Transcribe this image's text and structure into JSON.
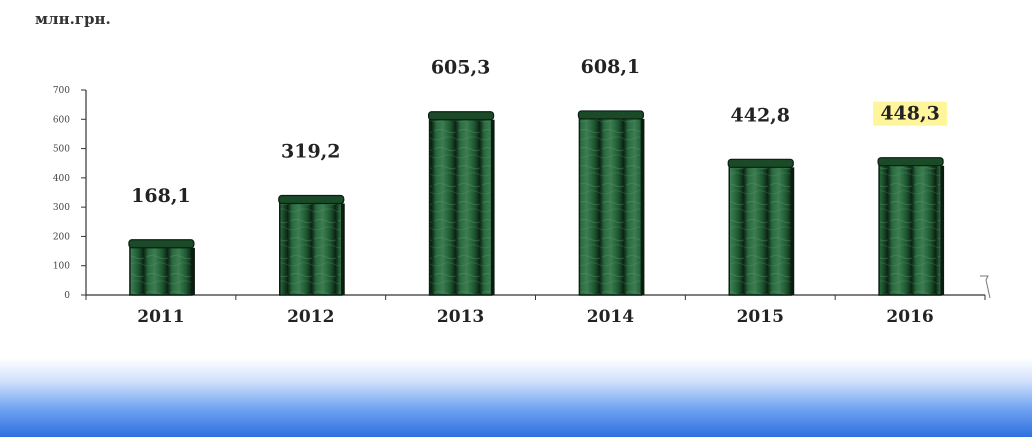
{
  "unit_label": "млн.грн.",
  "colors": {
    "bar_dark": "#0f2a17",
    "bar_mid": "#1f5a32",
    "bar_light": "#3c7d52",
    "highlight": "#fff59a",
    "axis": "#333333"
  },
  "chart_data": {
    "type": "bar",
    "categories": [
      "2011",
      "2012",
      "2013",
      "2014",
      "2015",
      "2016"
    ],
    "values": [
      168.1,
      319.2,
      605.3,
      608.1,
      442.8,
      448.3
    ],
    "data_labels": [
      "168,1",
      "319,2",
      "605,3",
      "608,1",
      "442,8",
      "448,3"
    ],
    "highlighted_label": "2016",
    "yticks": [
      0,
      100,
      200,
      300,
      400,
      500,
      600,
      700
    ],
    "ylim": [
      0,
      700
    ],
    "ylabel": "млн.грн.",
    "grid": false,
    "legend": "none"
  }
}
